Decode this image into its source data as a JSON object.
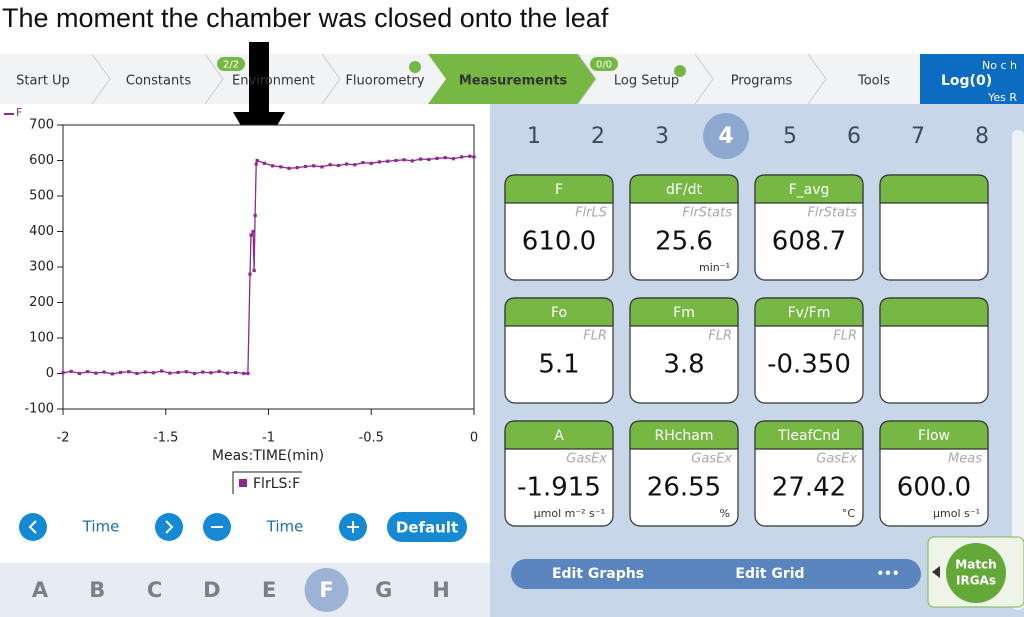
{
  "caption": "The moment the chamber was closed onto the leaf",
  "tabs": [
    {
      "label": "Start Up"
    },
    {
      "label": "Constants"
    },
    {
      "label": "Environment",
      "badge": "2/2"
    },
    {
      "label": "Fluorometry"
    },
    {
      "label": "Measurements"
    },
    {
      "label": "Log Setup",
      "badge": "0/0"
    },
    {
      "label": "Programs"
    },
    {
      "label": "Tools"
    }
  ],
  "log": {
    "label": "Log(0)",
    "top": "No c h",
    "bottom": "Yes R"
  },
  "chart_data": {
    "type": "line",
    "y_label": "F",
    "x_label": "Meas:TIME(min)",
    "xlim": [
      -2,
      0
    ],
    "ylim": [
      -100,
      700
    ],
    "xticks": [
      -2,
      -1.5,
      -1,
      -0.5,
      0
    ],
    "yticks": [
      -100,
      0,
      100,
      200,
      300,
      400,
      500,
      600,
      700
    ],
    "series": [
      {
        "name": "FlrLS:F",
        "color": "#8e2a8e",
        "x": [
          -2,
          -1.96,
          -1.92,
          -1.88,
          -1.84,
          -1.8,
          -1.76,
          -1.72,
          -1.68,
          -1.64,
          -1.6,
          -1.56,
          -1.52,
          -1.48,
          -1.44,
          -1.4,
          -1.36,
          -1.32,
          -1.28,
          -1.24,
          -1.2,
          -1.16,
          -1.12,
          -1.1,
          -1.09,
          -1.085,
          -1.075,
          -1.07,
          -1.065,
          -1.06,
          -1.055,
          -1.02,
          -0.98,
          -0.94,
          -0.9,
          -0.86,
          -0.82,
          -0.78,
          -0.74,
          -0.7,
          -0.66,
          -0.62,
          -0.58,
          -0.54,
          -0.5,
          -0.46,
          -0.42,
          -0.38,
          -0.34,
          -0.3,
          -0.26,
          -0.22,
          -0.18,
          -0.14,
          -0.1,
          -0.06,
          -0.02,
          0
        ],
        "values": [
          2,
          6,
          0,
          5,
          1,
          4,
          -1,
          3,
          5,
          0,
          4,
          2,
          7,
          1,
          3,
          5,
          0,
          4,
          2,
          6,
          1,
          3,
          0,
          0,
          280,
          390,
          400,
          290,
          445,
          590,
          600,
          592,
          585,
          582,
          578,
          580,
          583,
          585,
          582,
          588,
          586,
          590,
          588,
          594,
          592,
          596,
          598,
          600,
          602,
          599,
          604,
          603,
          606,
          608,
          605,
          610,
          612,
          610
        ]
      }
    ]
  },
  "controls": {
    "x_scroll": "Time",
    "x_zoom": "Time",
    "default": "Default"
  },
  "graph_letters": [
    "A",
    "B",
    "C",
    "D",
    "E",
    "F",
    "G",
    "H"
  ],
  "pages": [
    "1",
    "2",
    "3",
    "4",
    "5",
    "6",
    "7",
    "8"
  ],
  "tiles": {
    "rows": [
      [
        {
          "title": "F",
          "source": "FlrLS",
          "value": "610.0"
        },
        {
          "title": "dF/dt",
          "source": "FlrStats",
          "value": "25.6",
          "unit": "min⁻¹"
        },
        {
          "title": "F_avg",
          "source": "FlrStats",
          "value": "608.7"
        }
      ],
      [
        {
          "title": "Fo",
          "source": "FLR",
          "value": "5.1"
        },
        {
          "title": "Fm",
          "source": "FLR",
          "value": "3.8"
        },
        {
          "title": "Fv/Fm",
          "source": "FLR",
          "value": "-0.350"
        }
      ],
      [
        {
          "title": "A",
          "source": "GasEx",
          "value": "-1.915",
          "unit": "µmol m⁻² s⁻¹"
        },
        {
          "title": "RHcham",
          "source": "GasEx",
          "value": "26.55",
          "unit": "%"
        },
        {
          "title": "TleafCnd",
          "source": "GasEx",
          "value": "27.42",
          "unit": "°C"
        },
        {
          "title": "Flow",
          "source": "Meas",
          "value": "600.0",
          "unit": "µmol s⁻¹"
        }
      ]
    ]
  },
  "edit_bar": {
    "graphs": "Edit Graphs",
    "grid": "Edit Grid",
    "more": "•••"
  },
  "match_button": {
    "lines": [
      "Match",
      "IRGAs"
    ]
  }
}
